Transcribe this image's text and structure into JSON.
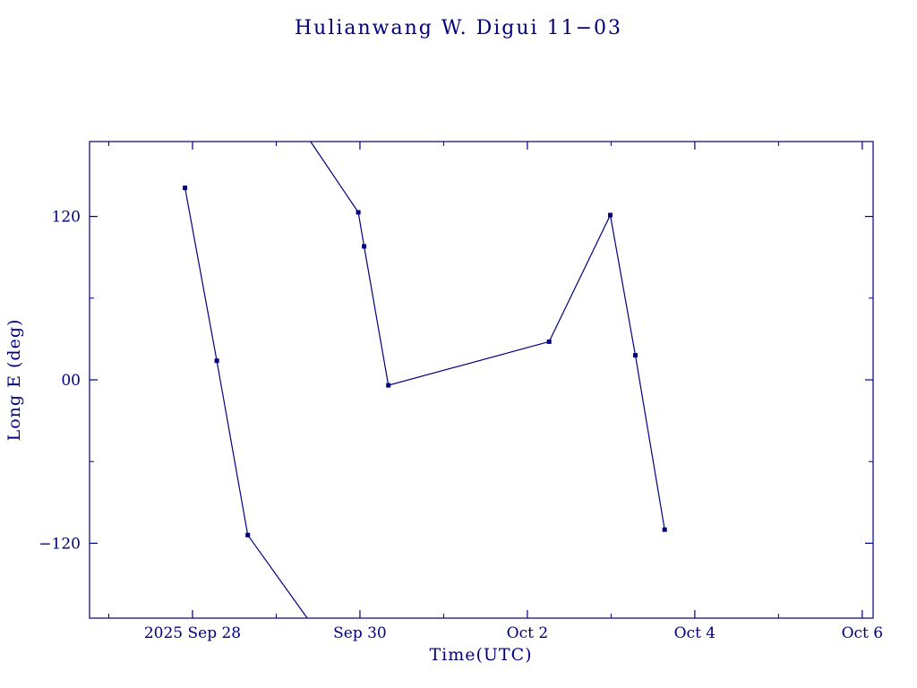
{
  "page": {
    "background": "#ffffff",
    "accent_color": "#000080"
  },
  "chart_data": {
    "type": "line",
    "title": "Hulianwang W. Digui 11−03",
    "xlabel": "Time(UTC)",
    "ylabel": "Long E (deg)",
    "series_color": "#000080",
    "background_color": "#ffffff",
    "legend": "none",
    "grid": false,
    "x_unit": "days since 2025 Sep 28 00:00 UTC",
    "xlim": [
      -1.23,
      8.13
    ],
    "ylim": [
      -175,
      175
    ],
    "x_ticks": [
      {
        "v": 0,
        "label": "2025 Sep 28"
      },
      {
        "v": 2,
        "label": "Sep 30"
      },
      {
        "v": 4,
        "label": "Oct 2"
      },
      {
        "v": 6,
        "label": "Oct 4"
      },
      {
        "v": 8,
        "label": "Oct 6"
      }
    ],
    "x_minor": [
      -1,
      1,
      3,
      5,
      7
    ],
    "y_ticks": [
      {
        "v": 120,
        "label": "120"
      },
      {
        "v": 0,
        "label": "00"
      },
      {
        "v": -120,
        "label": "−120"
      }
    ],
    "y_minor": [
      -60,
      60
    ],
    "points": [
      {
        "x": -0.09,
        "y": 141
      },
      {
        "x": 0.29,
        "y": 14
      },
      {
        "x": 0.66,
        "y": -114
      },
      {
        "x": 1.98,
        "y": 123
      },
      {
        "x": 2.05,
        "y": 98
      },
      {
        "x": 2.34,
        "y": -4
      },
      {
        "x": 4.26,
        "y": 28
      },
      {
        "x": 4.99,
        "y": 121
      },
      {
        "x": 5.29,
        "y": 18
      },
      {
        "x": 5.64,
        "y": -110
      }
    ],
    "segments": [
      [
        [
          -0.09,
          141
        ],
        [
          0.29,
          14
        ],
        [
          0.66,
          -114
        ],
        [
          1.37,
          -175
        ]
      ],
      [
        [
          1.41,
          175
        ],
        [
          1.98,
          123
        ],
        [
          2.05,
          98
        ],
        [
          2.34,
          -4
        ],
        [
          4.26,
          28
        ],
        [
          4.99,
          121
        ],
        [
          5.29,
          18
        ],
        [
          5.64,
          -110
        ]
      ]
    ]
  }
}
